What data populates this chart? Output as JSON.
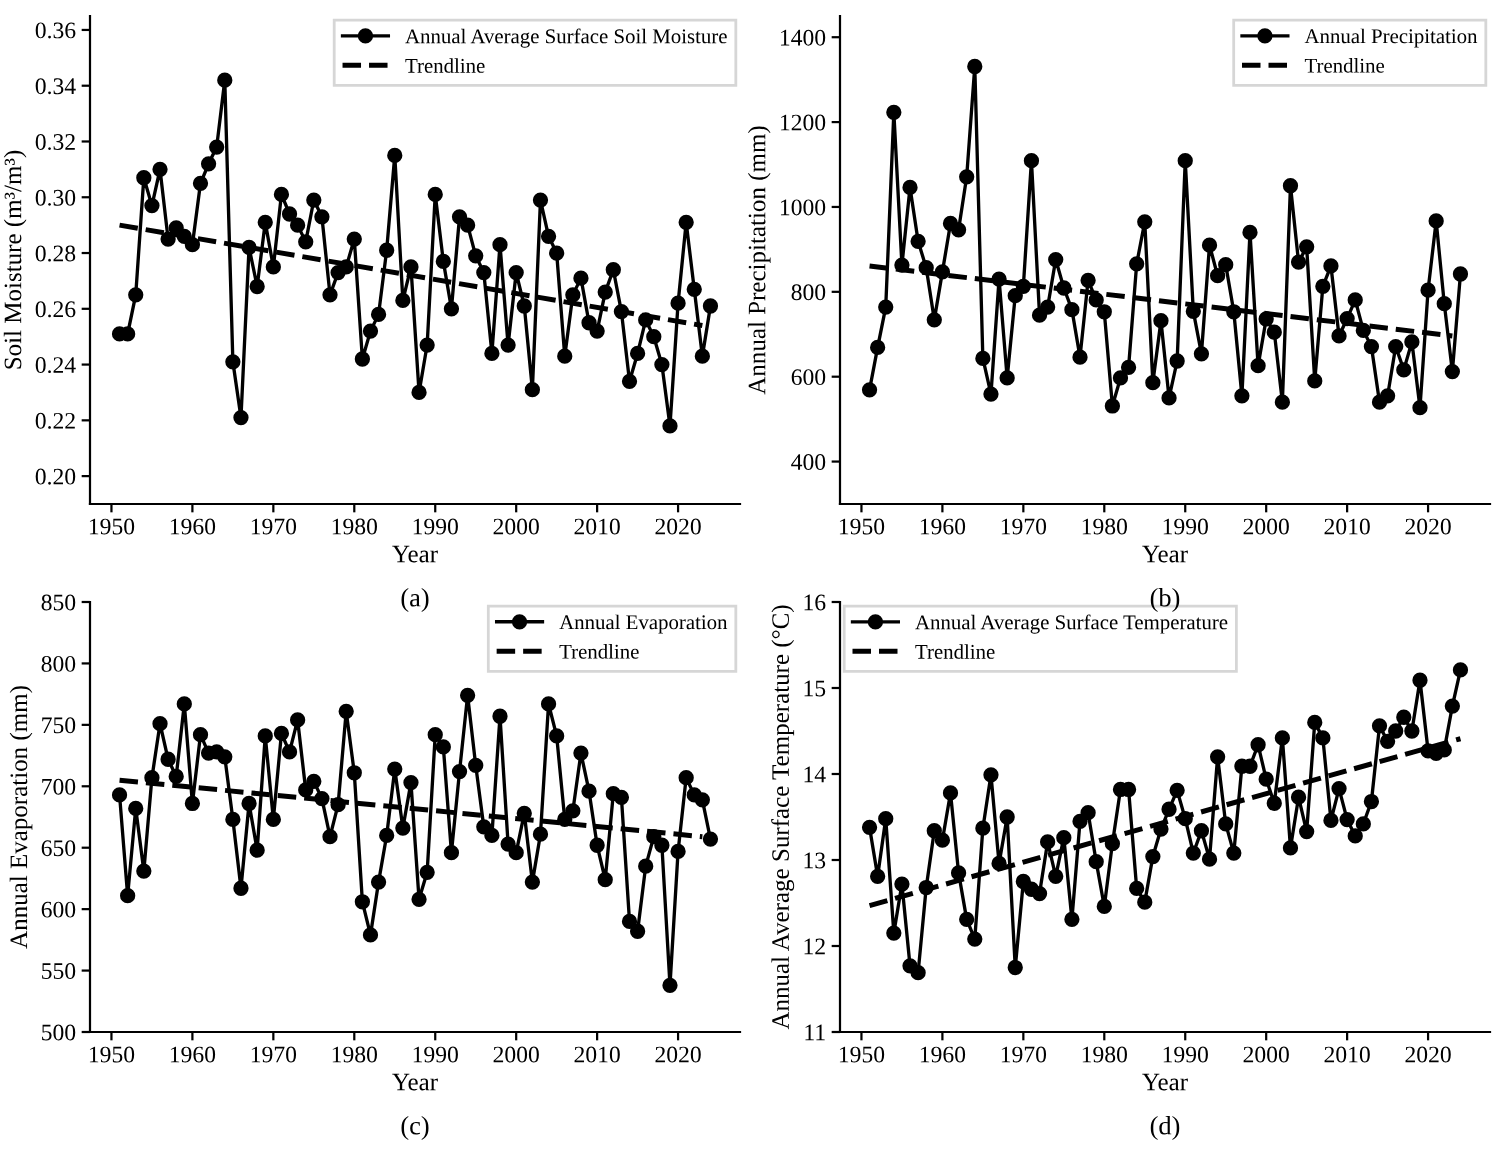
{
  "chart_data": [
    {
      "type": "line",
      "ylabel": "Soil Moisture (m³/m³)",
      "xlabel": "Year",
      "annotations": [
        "(a)"
      ],
      "legend": "top right",
      "grid": false,
      "xlim": [
        1947.35,
        2027.65
      ],
      "xticks": [
        1950,
        1960,
        1970,
        1980,
        1990,
        2000,
        2010,
        2020
      ],
      "ylim": [
        0.19,
        0.365
      ],
      "yticks": [
        {
          "value": 0.2,
          "label": "0.20"
        },
        {
          "value": 0.22,
          "label": "0.22"
        },
        {
          "value": 0.24,
          "label": "0.24"
        },
        {
          "value": 0.26,
          "label": "0.26"
        },
        {
          "value": 0.28,
          "label": "0.28"
        },
        {
          "value": 0.3,
          "label": "0.30"
        },
        {
          "value": 0.32,
          "label": "0.32"
        },
        {
          "value": 0.34,
          "label": "0.34"
        },
        {
          "value": 0.36,
          "label": "0.36"
        }
      ],
      "series": [
        {
          "name": "Annual Average Surface Soil Moisture",
          "color": "#000000",
          "marker": "circle",
          "line_style": "solid",
          "x": [
            1951,
            1952,
            1953,
            1954,
            1955,
            1956,
            1957,
            1958,
            1959,
            1960,
            1961,
            1962,
            1963,
            1964,
            1965,
            1966,
            1967,
            1968,
            1969,
            1970,
            1971,
            1972,
            1973,
            1974,
            1975,
            1976,
            1977,
            1978,
            1979,
            1980,
            1981,
            1982,
            1983,
            1984,
            1985,
            1986,
            1987,
            1988,
            1989,
            1990,
            1991,
            1992,
            1993,
            1994,
            1995,
            1996,
            1997,
            1998,
            1999,
            2000,
            2001,
            2002,
            2003,
            2004,
            2005,
            2006,
            2007,
            2008,
            2009,
            2010,
            2011,
            2012,
            2013,
            2014,
            2015,
            2016,
            2017,
            2018,
            2019,
            2020,
            2021,
            2022,
            2023,
            2024
          ],
          "values": [
            0.251,
            0.251,
            0.265,
            0.307,
            0.297,
            0.31,
            0.285,
            0.289,
            0.286,
            0.283,
            0.305,
            0.312,
            0.318,
            0.342,
            0.241,
            0.221,
            0.282,
            0.268,
            0.291,
            0.275,
            0.301,
            0.294,
            0.29,
            0.284,
            0.299,
            0.293,
            0.265,
            0.273,
            0.275,
            0.285,
            0.242,
            0.252,
            0.258,
            0.281,
            0.315,
            0.263,
            0.275,
            0.23,
            0.247,
            0.301,
            0.277,
            0.26,
            0.293,
            0.29,
            0.279,
            0.273,
            0.244,
            0.283,
            0.247,
            0.273,
            0.261,
            0.231,
            0.299,
            0.286,
            0.28,
            0.243,
            0.265,
            0.271,
            0.255,
            0.252,
            0.266,
            0.274,
            0.259,
            0.234,
            0.244,
            0.256,
            0.25,
            0.24,
            0.218,
            0.262,
            0.291,
            0.267,
            0.243,
            0.261
          ]
        },
        {
          "name": "Trendline",
          "color": "#000000",
          "marker": "none",
          "line_style": "dashed",
          "x": [
            1951,
            2023
          ],
          "values": [
            0.29,
            0.254
          ]
        }
      ]
    },
    {
      "type": "line",
      "ylabel": "Annual Precipitation (mm)",
      "xlabel": "Year",
      "annotations": [
        "(b)"
      ],
      "legend": "top right",
      "grid": false,
      "xlim": [
        1947.35,
        2027.65
      ],
      "xticks": [
        1950,
        1960,
        1970,
        1980,
        1990,
        2000,
        2010,
        2020
      ],
      "ylim": [
        300,
        1450
      ],
      "yticks": [
        400,
        600,
        800,
        1000,
        1200,
        1400
      ],
      "series": [
        {
          "name": "Annual Precipitation",
          "color": "#000000",
          "marker": "circle",
          "line_style": "solid",
          "x": [
            1951,
            1952,
            1953,
            1954,
            1955,
            1956,
            1957,
            1958,
            1959,
            1960,
            1961,
            1962,
            1963,
            1964,
            1965,
            1966,
            1967,
            1968,
            1969,
            1970,
            1971,
            1972,
            1973,
            1974,
            1975,
            1976,
            1977,
            1978,
            1979,
            1980,
            1981,
            1982,
            1983,
            1984,
            1985,
            1986,
            1987,
            1988,
            1989,
            1990,
            1991,
            1992,
            1993,
            1994,
            1995,
            1996,
            1997,
            1998,
            1999,
            2000,
            2001,
            2002,
            2003,
            2004,
            2005,
            2006,
            2007,
            2008,
            2009,
            2010,
            2011,
            2012,
            2013,
            2014,
            2015,
            2016,
            2017,
            2018,
            2019,
            2020,
            2021,
            2022,
            2023,
            2024
          ],
          "values": [
            569,
            669,
            764,
            1223,
            863,
            1046,
            919,
            857,
            734,
            847,
            961,
            946,
            1071,
            1331,
            643,
            559,
            830,
            597,
            791,
            813,
            1109,
            745,
            764,
            876,
            809,
            758,
            646,
            827,
            781,
            753,
            531,
            597,
            622,
            866,
            965,
            586,
            732,
            550,
            637,
            1109,
            754,
            654,
            910,
            838,
            864,
            753,
            555,
            940,
            626,
            736,
            705,
            540,
            1050,
            870,
            906,
            590,
            813,
            861,
            696,
            737,
            781,
            709,
            671,
            540,
            555,
            671,
            616,
            682,
            527,
            804,
            967,
            772,
            612,
            842
          ]
        },
        {
          "name": "Trendline",
          "color": "#000000",
          "marker": "none",
          "line_style": "dashed",
          "x": [
            1951,
            2023
          ],
          "values": [
            861,
            696
          ]
        }
      ]
    },
    {
      "type": "line",
      "ylabel": "Annual Evaporation (mm)",
      "xlabel": "Year",
      "annotations": [
        "(c)"
      ],
      "legend": "top right",
      "grid": false,
      "xlim": [
        1947.35,
        2027.65
      ],
      "xticks": [
        1950,
        1960,
        1970,
        1980,
        1990,
        2000,
        2010,
        2020
      ],
      "ylim": [
        500,
        850
      ],
      "yticks": [
        500,
        550,
        600,
        650,
        700,
        750,
        800,
        850
      ],
      "series": [
        {
          "name": "Annual Evaporation",
          "color": "#000000",
          "marker": "circle",
          "line_style": "solid",
          "x": [
            1951,
            1952,
            1953,
            1954,
            1955,
            1956,
            1957,
            1958,
            1959,
            1960,
            1961,
            1962,
            1963,
            1964,
            1965,
            1966,
            1967,
            1968,
            1969,
            1970,
            1971,
            1972,
            1973,
            1974,
            1975,
            1976,
            1977,
            1978,
            1979,
            1980,
            1981,
            1982,
            1983,
            1984,
            1985,
            1986,
            1987,
            1988,
            1989,
            1990,
            1991,
            1992,
            1993,
            1994,
            1995,
            1996,
            1997,
            1998,
            1999,
            2000,
            2001,
            2002,
            2003,
            2004,
            2005,
            2006,
            2007,
            2008,
            2009,
            2010,
            2011,
            2012,
            2013,
            2014,
            2015,
            2016,
            2017,
            2018,
            2019,
            2020,
            2021,
            2022,
            2023,
            2024
          ],
          "values": [
            693,
            611,
            682,
            631,
            707,
            751,
            722,
            708,
            767,
            686,
            742,
            727,
            728,
            724,
            673,
            617,
            686,
            648,
            741,
            673,
            743,
            728,
            754,
            697,
            704,
            690,
            659,
            685,
            761,
            711,
            606,
            579,
            622,
            660,
            714,
            666,
            703,
            608,
            630,
            742,
            732,
            646,
            712,
            774,
            717,
            667,
            660,
            757,
            653,
            646,
            678,
            622,
            661,
            767,
            741,
            673,
            680,
            727,
            696,
            652,
            624,
            694,
            691,
            590,
            582,
            635,
            659,
            652,
            538,
            647,
            707,
            693,
            689,
            657
          ]
        },
        {
          "name": "Trendline",
          "color": "#000000",
          "marker": "none",
          "line_style": "dashed",
          "x": [
            1951,
            2023
          ],
          "values": [
            705,
            659
          ]
        }
      ]
    },
    {
      "type": "line",
      "ylabel": "Annual Average Surface Temperature (°C)",
      "xlabel": "Year",
      "annotations": [
        "(d)"
      ],
      "legend": "top left",
      "grid": false,
      "xlim": [
        1947.35,
        2027.65
      ],
      "xticks": [
        1950,
        1960,
        1970,
        1980,
        1990,
        2000,
        2010,
        2020
      ],
      "ylim": [
        11,
        16
      ],
      "yticks": [
        11,
        12,
        13,
        14,
        15,
        16
      ],
      "series": [
        {
          "name": "Annual Average Surface Temperature",
          "color": "#000000",
          "marker": "circle",
          "line_style": "solid",
          "x": [
            1951,
            1952,
            1953,
            1954,
            1955,
            1956,
            1957,
            1958,
            1959,
            1960,
            1961,
            1962,
            1963,
            1964,
            1965,
            1966,
            1967,
            1968,
            1969,
            1970,
            1971,
            1972,
            1973,
            1974,
            1975,
            1976,
            1977,
            1978,
            1979,
            1980,
            1981,
            1982,
            1983,
            1984,
            1985,
            1986,
            1987,
            1988,
            1989,
            1990,
            1991,
            1992,
            1993,
            1994,
            1995,
            1996,
            1997,
            1998,
            1999,
            2000,
            2001,
            2002,
            2003,
            2004,
            2005,
            2006,
            2007,
            2008,
            2009,
            2010,
            2011,
            2012,
            2013,
            2014,
            2015,
            2016,
            2017,
            2018,
            2019,
            2020,
            2021,
            2022,
            2023,
            2024
          ],
          "values": [
            13.38,
            12.81,
            13.48,
            12.15,
            12.72,
            11.77,
            11.69,
            12.68,
            13.34,
            13.23,
            13.78,
            12.85,
            12.31,
            12.08,
            13.37,
            13.99,
            12.96,
            13.5,
            11.75,
            12.75,
            12.66,
            12.61,
            13.21,
            12.81,
            13.26,
            12.31,
            13.45,
            13.55,
            12.98,
            12.46,
            13.19,
            13.82,
            13.82,
            12.67,
            12.51,
            13.04,
            13.36,
            13.59,
            13.81,
            13.48,
            13.08,
            13.34,
            13.01,
            14.2,
            13.42,
            13.08,
            14.09,
            14.09,
            14.34,
            13.94,
            13.66,
            14.42,
            13.14,
            13.73,
            13.33,
            14.6,
            14.42,
            13.46,
            13.83,
            13.47,
            13.28,
            13.42,
            13.68,
            14.56,
            14.38,
            14.5,
            14.66,
            14.5,
            15.09,
            14.27,
            14.24,
            14.28,
            14.79,
            15.21
          ]
        },
        {
          "name": "Trendline",
          "color": "#000000",
          "marker": "none",
          "line_style": "dashed",
          "x": [
            1951,
            2024
          ],
          "values": [
            12.47,
            14.41
          ]
        }
      ]
    }
  ]
}
